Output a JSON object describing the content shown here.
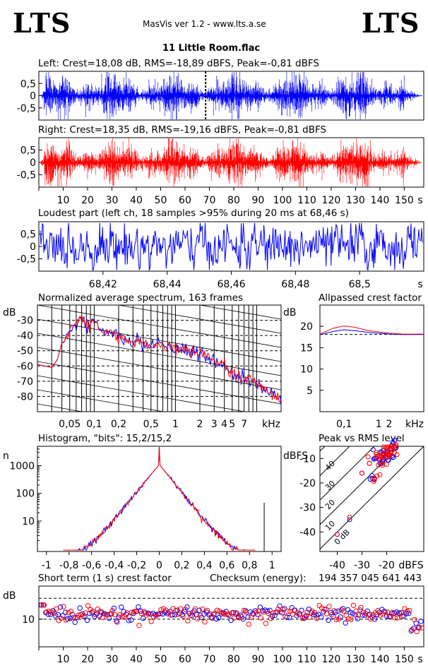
{
  "app": {
    "logo_left": "LTS",
    "logo_right": "LTS",
    "header": "MasVis ver 1.2 - www.lts.a.se",
    "file_title": "11 Little Room.flac"
  },
  "panels": {
    "left": {
      "label": "Left: Crest=18,08 dB, RMS=-18,89 dBFS, Peak=-0,81 dBFS",
      "color": "#0000ff"
    },
    "right": {
      "label": "Right: Crest=18,35 dB, RMS=-19,16 dBFS, Peak=-0,81 dBFS",
      "color": "#ff0000"
    },
    "loudest": {
      "label": "Loudest part (left  ch, 18 samples >95% during 20 ms at 68,46 s)"
    },
    "spectrum": {
      "label": "Normalized average spectrum, 163 frames",
      "unit": "dB"
    },
    "crest": {
      "label": "Allpassed crest factor",
      "unit": "dB"
    },
    "histogram": {
      "label": "Histogram, \"bits\": 15,2/15,2",
      "unit": "n"
    },
    "pvr": {
      "label": "Peak vs RMS level",
      "unit": "dBFS"
    },
    "shortcrest": {
      "label": "Short term (1 s) crest factor",
      "unit": "dB"
    },
    "checksum": {
      "label": "Checksum (energy):",
      "value": "194 357 045 641 443"
    }
  },
  "chart_data": [
    {
      "type": "line",
      "title": "Left: Crest=18,08 dB, RMS=-18,89 dBFS, Peak=-0,81 dBFS",
      "series": [
        {
          "name": "Left",
          "color": "#0000ff"
        }
      ],
      "ylim": [
        -1,
        1
      ],
      "yticks": [
        "0,5",
        "0",
        "-0,5"
      ],
      "xlim": [
        0,
        158
      ],
      "marker_at_s": 68.46
    },
    {
      "type": "line",
      "title": "Right: Crest=18,35 dB, RMS=-19,16 dBFS, Peak=-0,81 dBFS",
      "series": [
        {
          "name": "Right",
          "color": "#ff0000"
        }
      ],
      "ylim": [
        -1,
        1
      ],
      "yticks": [
        "0,5",
        "0",
        "-0,5"
      ],
      "xlim": [
        0,
        158
      ],
      "xticks": [
        "10",
        "20",
        "30",
        "40",
        "50",
        "60",
        "70",
        "80",
        "90",
        "100",
        "110",
        "120",
        "130",
        "140",
        "150",
        "s"
      ]
    },
    {
      "type": "line",
      "title": "Loudest part (left  ch, 18 samples >95% during 20 ms at 68,46 s)",
      "series": [
        {
          "name": "Left",
          "color": "#0000ff"
        }
      ],
      "ylim": [
        -1,
        1
      ],
      "yticks": [
        "0,5",
        "0",
        "-0,5"
      ],
      "xlim": [
        68.4,
        68.52
      ],
      "xticks": [
        "68,42",
        "68,44",
        "68,46",
        "68,48",
        "68,5",
        "s"
      ]
    },
    {
      "type": "line",
      "title": "Normalized average spectrum, 163 frames",
      "xscale": "log",
      "xlabel": "kHz",
      "ylabel": "dB",
      "xticks": [
        "0,05",
        "0,1",
        "0,2",
        "0,5",
        "1",
        "2",
        "3",
        "4",
        "5",
        "7",
        "kHz"
      ],
      "yticks": [
        "-30",
        "-40",
        "-50",
        "-60",
        "-70",
        "-80"
      ],
      "ylim": [
        -90,
        -20
      ],
      "series": [
        {
          "name": "Left",
          "color": "#0000ff",
          "x": [
            0.02,
            0.03,
            0.035,
            0.04,
            0.05,
            0.06,
            0.07,
            0.08,
            0.1,
            0.12,
            0.15,
            0.2,
            0.3,
            0.5,
            0.7,
            1,
            1.5,
            2,
            3,
            4,
            5,
            7,
            10,
            15,
            20
          ],
          "y": [
            -59,
            -61,
            -56,
            -45,
            -38,
            -32,
            -28,
            -34,
            -30,
            -36,
            -38,
            -42,
            -44,
            -46,
            -47,
            -48,
            -50,
            -52,
            -56,
            -60,
            -64,
            -68,
            -72,
            -78,
            -82
          ]
        },
        {
          "name": "Right",
          "color": "#ff0000",
          "x": [
            0.02,
            0.03,
            0.035,
            0.04,
            0.05,
            0.06,
            0.07,
            0.08,
            0.1,
            0.12,
            0.15,
            0.2,
            0.3,
            0.5,
            0.7,
            1,
            1.5,
            2,
            3,
            4,
            5,
            7,
            10,
            15,
            20
          ],
          "y": [
            -59,
            -61,
            -56,
            -45,
            -38,
            -31,
            -28,
            -33,
            -30,
            -36,
            -38,
            -42,
            -44,
            -46,
            -47,
            -48,
            -50,
            -52,
            -56,
            -60,
            -64,
            -68,
            -72,
            -78,
            -82
          ]
        }
      ]
    },
    {
      "type": "line",
      "title": "Allpassed crest factor",
      "xscale": "log",
      "xlabel": "kHz",
      "ylabel": "dB",
      "xticks": [
        "0,1",
        "1",
        "2",
        "kHz"
      ],
      "yticks": [
        "20",
        "15",
        "10",
        "5"
      ],
      "ylim": [
        0,
        25
      ],
      "reference_db": 18.1,
      "series": [
        {
          "name": "Left",
          "color": "#0000ff",
          "x": [
            0.02,
            0.05,
            0.1,
            0.2,
            0.5,
            1,
            2,
            5,
            20
          ],
          "y": [
            18.1,
            18.8,
            19.2,
            19.0,
            18.6,
            18.4,
            18.2,
            18.1,
            18.1
          ]
        },
        {
          "name": "Right",
          "color": "#ff0000",
          "x": [
            0.02,
            0.05,
            0.1,
            0.2,
            0.5,
            1,
            2,
            5,
            20
          ],
          "y": [
            18.2,
            19.6,
            20.1,
            19.8,
            19.0,
            18.7,
            18.4,
            18.2,
            18.2
          ]
        }
      ]
    },
    {
      "type": "line",
      "title": "Histogram, \"bits\": 15,2/15,2",
      "ylabel": "n",
      "yscale": "log",
      "xticks": [
        "-1",
        "-0,8",
        "-0,6",
        "-0,4",
        "-0,2",
        "0",
        "0,2",
        "0,4",
        "0,6",
        "0,8",
        "1"
      ],
      "yticks": [
        "1000",
        "100",
        "10"
      ],
      "xlim": [
        -1,
        1
      ],
      "series": [
        {
          "name": "Left",
          "color": "#0000ff",
          "x": [
            -0.9,
            -0.8,
            -0.6,
            -0.4,
            -0.2,
            -0.1,
            0,
            0.1,
            0.2,
            0.4,
            0.6,
            0.8,
            0.9
          ],
          "y": [
            1,
            2,
            8,
            40,
            220,
            550,
            1100,
            550,
            220,
            40,
            8,
            2,
            1
          ]
        },
        {
          "name": "Right",
          "color": "#ff0000",
          "x": [
            -0.9,
            -0.8,
            -0.6,
            -0.4,
            -0.2,
            -0.1,
            0,
            0.1,
            0.2,
            0.4,
            0.6,
            0.8,
            0.9
          ],
          "y": [
            1,
            2,
            8,
            40,
            220,
            550,
            1100,
            550,
            220,
            40,
            8,
            2,
            1
          ]
        }
      ]
    },
    {
      "type": "scatter",
      "title": "Peak vs RMS level",
      "xlabel": "dBFS",
      "ylabel": "dBFS",
      "xticks": [
        "-40",
        "-30",
        "-20",
        "dBFS"
      ],
      "yticks": [
        "-10",
        "-20",
        "-30",
        "-40"
      ],
      "xlim": [
        -47,
        -5
      ],
      "ylim": [
        -48,
        -5
      ],
      "diagonal_labels": [
        "0 dB",
        "10",
        "20",
        "30",
        "40"
      ],
      "series": [
        {
          "name": "Left",
          "color": "#0000ff",
          "x": [
            -40,
            -35,
            -30,
            -27,
            -25,
            -24,
            -23,
            -22,
            -21,
            -20,
            -19,
            -18,
            -17
          ],
          "y": [
            -41,
            -35,
            -16,
            -12,
            -18,
            -10,
            -9,
            -11,
            -8,
            -7,
            -9,
            -6,
            -5
          ]
        },
        {
          "name": "Right",
          "color": "#ff0000",
          "x": [
            -40,
            -35,
            -30,
            -27,
            -25,
            -24,
            -23,
            -22,
            -21,
            -20,
            -19,
            -18,
            -17
          ],
          "y": [
            -41,
            -34,
            -16,
            -12,
            -18,
            -10,
            -9,
            -11,
            -8,
            -7,
            -9,
            -6,
            -5
          ]
        }
      ]
    },
    {
      "type": "scatter",
      "title": "Short term (1 s) crest factor",
      "ylabel": "dB",
      "yscale": "log",
      "xticks": [
        "10",
        "20",
        "30",
        "40",
        "50",
        "60",
        "70",
        "80",
        "90",
        "100",
        "110",
        "120",
        "130",
        "140",
        "150",
        "s"
      ],
      "yticks": [
        "10"
      ],
      "xlim": [
        0,
        158
      ],
      "reference_lines_db": [
        20,
        10
      ],
      "series": [
        {
          "name": "Left",
          "color": "#0000ff",
          "pattern": "crest values scattered 10-15 dB, drops to ~7 dB at end"
        },
        {
          "name": "Right",
          "color": "#ff0000",
          "pattern": "crest values scattered 10-15 dB, drops to ~7 dB at end"
        }
      ]
    }
  ]
}
